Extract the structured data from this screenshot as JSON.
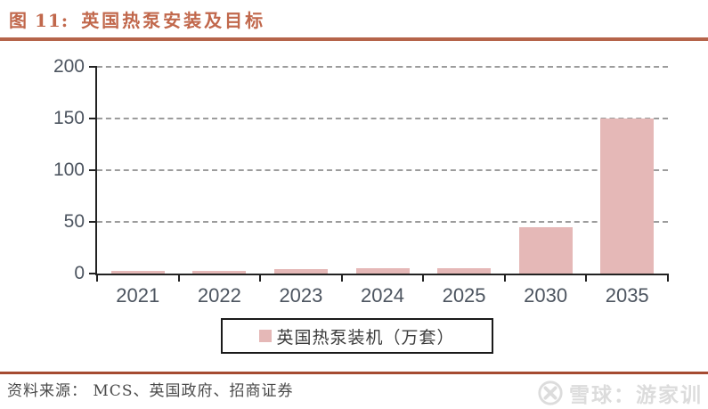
{
  "header": {
    "prefix": "图 11:",
    "title": "英国热泵安装及目标"
  },
  "chart_data": {
    "type": "bar",
    "title": "图 11: 英国热泵安装及目标",
    "categories": [
      "2021",
      "2022",
      "2023",
      "2024",
      "2025",
      "2030",
      "2035"
    ],
    "values": [
      3,
      3,
      4,
      5,
      5.5,
      45,
      150
    ],
    "series_name": "英国热泵装机（万套）",
    "xlabel": "",
    "ylabel": "",
    "ylim": [
      0,
      200
    ],
    "yticks": [
      0,
      50,
      100,
      150,
      200
    ],
    "grid": "horizontal-dashed",
    "legend_position": "bottom-center-boxed",
    "bar_color": "#E5B8B7"
  },
  "legend": {
    "label": "英国热泵装机（万套）",
    "marker_color": "#E5B8B7"
  },
  "footer": {
    "source": "资料来源： MCS、英国政府、招商证券",
    "watermark": "雪球：游家训",
    "watermark_icon": "xueqiu-logo"
  },
  "colors": {
    "accent_title": "#C1684C",
    "rule_top": "#B5644A",
    "rule_bottom": "#A54B31",
    "bar": "#E5B8B7",
    "axis": "#222222",
    "tick_labels": "#4d5560",
    "gridline": "#9c9c9c",
    "legend_text": "#3d3d3d",
    "source_text": "#4a4a4a",
    "watermark": "#DCDCDC"
  }
}
